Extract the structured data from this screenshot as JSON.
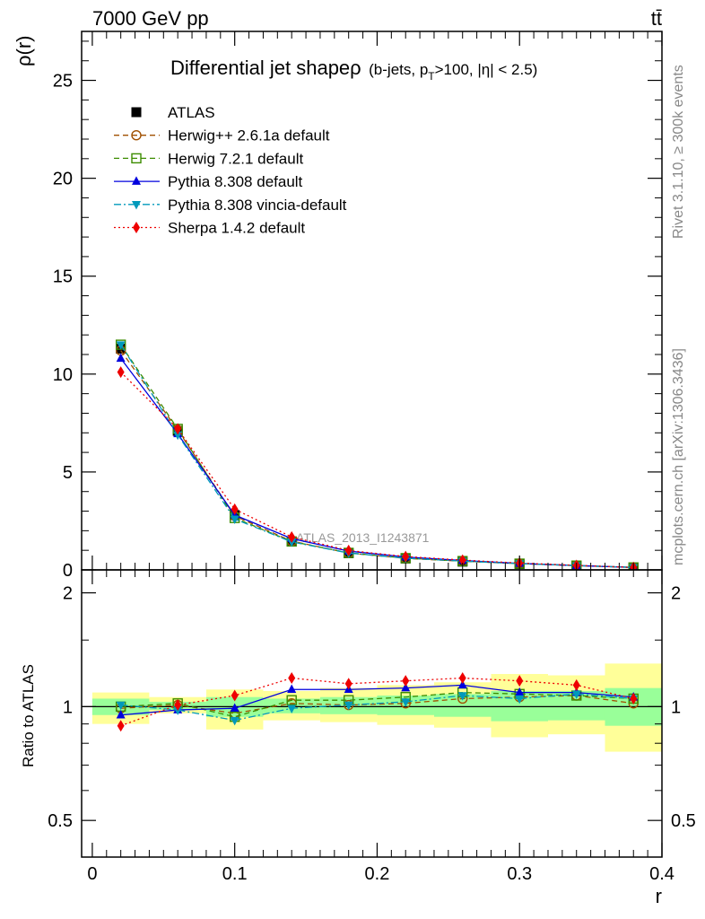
{
  "header": {
    "left": "7000 GeV pp",
    "right": "tt̄"
  },
  "side": {
    "rivet": "Rivet 3.1.10, ≥ 300k events",
    "mcplots": "mcplots.cern.ch [arXiv:1306.3436]"
  },
  "chart_data": [
    {
      "type": "line",
      "panel": "main",
      "title_main": "Differential jet shape",
      "title_rho": "ρ",
      "title_detail_pre": "(b-jets, p",
      "title_detail_sub": "T",
      "title_detail_post": ">100, |η| < 2.5)",
      "watermark": "ATLAS_2013_I1243871",
      "ylabel": "ρ(r)",
      "xlim": [
        -0.0075,
        0.4
      ],
      "ylim": [
        0,
        27.5
      ],
      "yticks": [
        0,
        5,
        10,
        15,
        20,
        25
      ],
      "ytick_labels": [
        "0",
        "5",
        "10",
        "15",
        "20",
        "25"
      ],
      "x": [
        0.02,
        0.06,
        0.1,
        0.14,
        0.18,
        0.22,
        0.26,
        0.3,
        0.34,
        0.38
      ],
      "series": [
        {
          "name": "ATLAS",
          "color": "#000000",
          "style": "data",
          "marker": "square-filled",
          "values": [
            11.3,
            7.1,
            2.8,
            1.45,
            0.85,
            0.58,
            0.42,
            0.3,
            0.2,
            0.12
          ]
        },
        {
          "name": "Herwig++ 2.6.1a default",
          "color": "#a05000",
          "style": "dashed",
          "marker": "circle-open",
          "values": [
            11.2,
            7.15,
            2.75,
            1.47,
            0.86,
            0.59,
            0.44,
            0.32,
            0.22,
            0.125
          ]
        },
        {
          "name": "Herwig 7.2.1 default",
          "color": "#3c8c00",
          "style": "dashed",
          "marker": "square-open",
          "values": [
            11.5,
            7.2,
            2.65,
            1.45,
            0.87,
            0.6,
            0.45,
            0.32,
            0.22,
            0.125
          ]
        },
        {
          "name": "Pythia 8.308 default",
          "color": "#0000dd",
          "style": "solid",
          "marker": "triangle-up",
          "values": [
            10.8,
            6.95,
            2.8,
            1.6,
            0.96,
            0.66,
            0.48,
            0.33,
            0.22,
            0.125
          ]
        },
        {
          "name": "Pythia 8.308 vincia-default",
          "color": "#0099bb",
          "style": "dashdot",
          "marker": "triangle-down",
          "values": [
            11.5,
            6.9,
            2.6,
            1.43,
            0.86,
            0.6,
            0.45,
            0.32,
            0.22,
            0.125
          ]
        },
        {
          "name": "Sherpa 1.4.2 default",
          "color": "#ee0000",
          "style": "dotted",
          "marker": "diamond",
          "values": [
            10.1,
            7.2,
            3.1,
            1.68,
            0.99,
            0.68,
            0.5,
            0.35,
            0.23,
            0.125
          ]
        }
      ]
    },
    {
      "type": "line",
      "panel": "ratio",
      "ylabel": "Ratio to ATLAS",
      "xlabel": "r",
      "xlim": [
        -0.0075,
        0.4
      ],
      "ylim": [
        0.4,
        2.3
      ],
      "log_y": true,
      "yticks": [
        0.5,
        1,
        2
      ],
      "ytick_labels": [
        "0.5",
        "1",
        "2"
      ],
      "xticks": [
        0,
        0.1,
        0.2,
        0.3,
        0.4
      ],
      "xtick_labels": [
        "0",
        "0.1",
        "0.2",
        "0.3",
        "0.4"
      ],
      "bin_edges": [
        0,
        0.04,
        0.08,
        0.12,
        0.16,
        0.2,
        0.24,
        0.28,
        0.32,
        0.36,
        0.4
      ],
      "band_outer_low": [
        0.9,
        0.96,
        0.87,
        0.92,
        0.91,
        0.895,
        0.88,
        0.83,
        0.845,
        0.76
      ],
      "band_outer_high": [
        1.09,
        1.06,
        1.11,
        1.1,
        1.12,
        1.14,
        1.16,
        1.22,
        1.21,
        1.3
      ],
      "band_inner_low": [
        0.95,
        0.98,
        0.94,
        0.96,
        0.955,
        0.95,
        0.94,
        0.915,
        0.92,
        0.89
      ],
      "band_inner_high": [
        1.05,
        1.03,
        1.06,
        1.05,
        1.06,
        1.07,
        1.08,
        1.1,
        1.1,
        1.12
      ],
      "x": [
        0.02,
        0.06,
        0.1,
        0.14,
        0.18,
        0.22,
        0.26,
        0.3,
        0.34,
        0.38
      ],
      "series": [
        {
          "name": "Herwig++ 2.6.1a default",
          "color": "#a05000",
          "style": "dashed",
          "marker": "circle-open",
          "values": [
            0.99,
            1.01,
            0.96,
            1.02,
            1.01,
            1.02,
            1.05,
            1.06,
            1.07,
            1.02
          ]
        },
        {
          "name": "Herwig 7.2.1 default",
          "color": "#3c8c00",
          "style": "dashed",
          "marker": "square-open",
          "values": [
            1.0,
            1.02,
            0.94,
            1.04,
            1.04,
            1.06,
            1.09,
            1.08,
            1.07,
            1.05
          ]
        },
        {
          "name": "Pythia 8.308 default",
          "color": "#0000dd",
          "style": "solid",
          "marker": "triangle-up",
          "values": [
            0.95,
            0.98,
            0.99,
            1.11,
            1.11,
            1.12,
            1.14,
            1.09,
            1.09,
            1.06
          ]
        },
        {
          "name": "Pythia 8.308 vincia-default",
          "color": "#0099bb",
          "style": "dashdot",
          "marker": "triangle-down",
          "values": [
            1.01,
            0.98,
            0.92,
            0.99,
            1.01,
            1.03,
            1.07,
            1.05,
            1.08,
            1.05
          ]
        },
        {
          "name": "Sherpa 1.4.2 default",
          "color": "#ee0000",
          "style": "dotted",
          "marker": "diamond",
          "values": [
            0.89,
            1.01,
            1.07,
            1.19,
            1.15,
            1.17,
            1.19,
            1.17,
            1.14,
            1.05
          ]
        }
      ]
    }
  ]
}
